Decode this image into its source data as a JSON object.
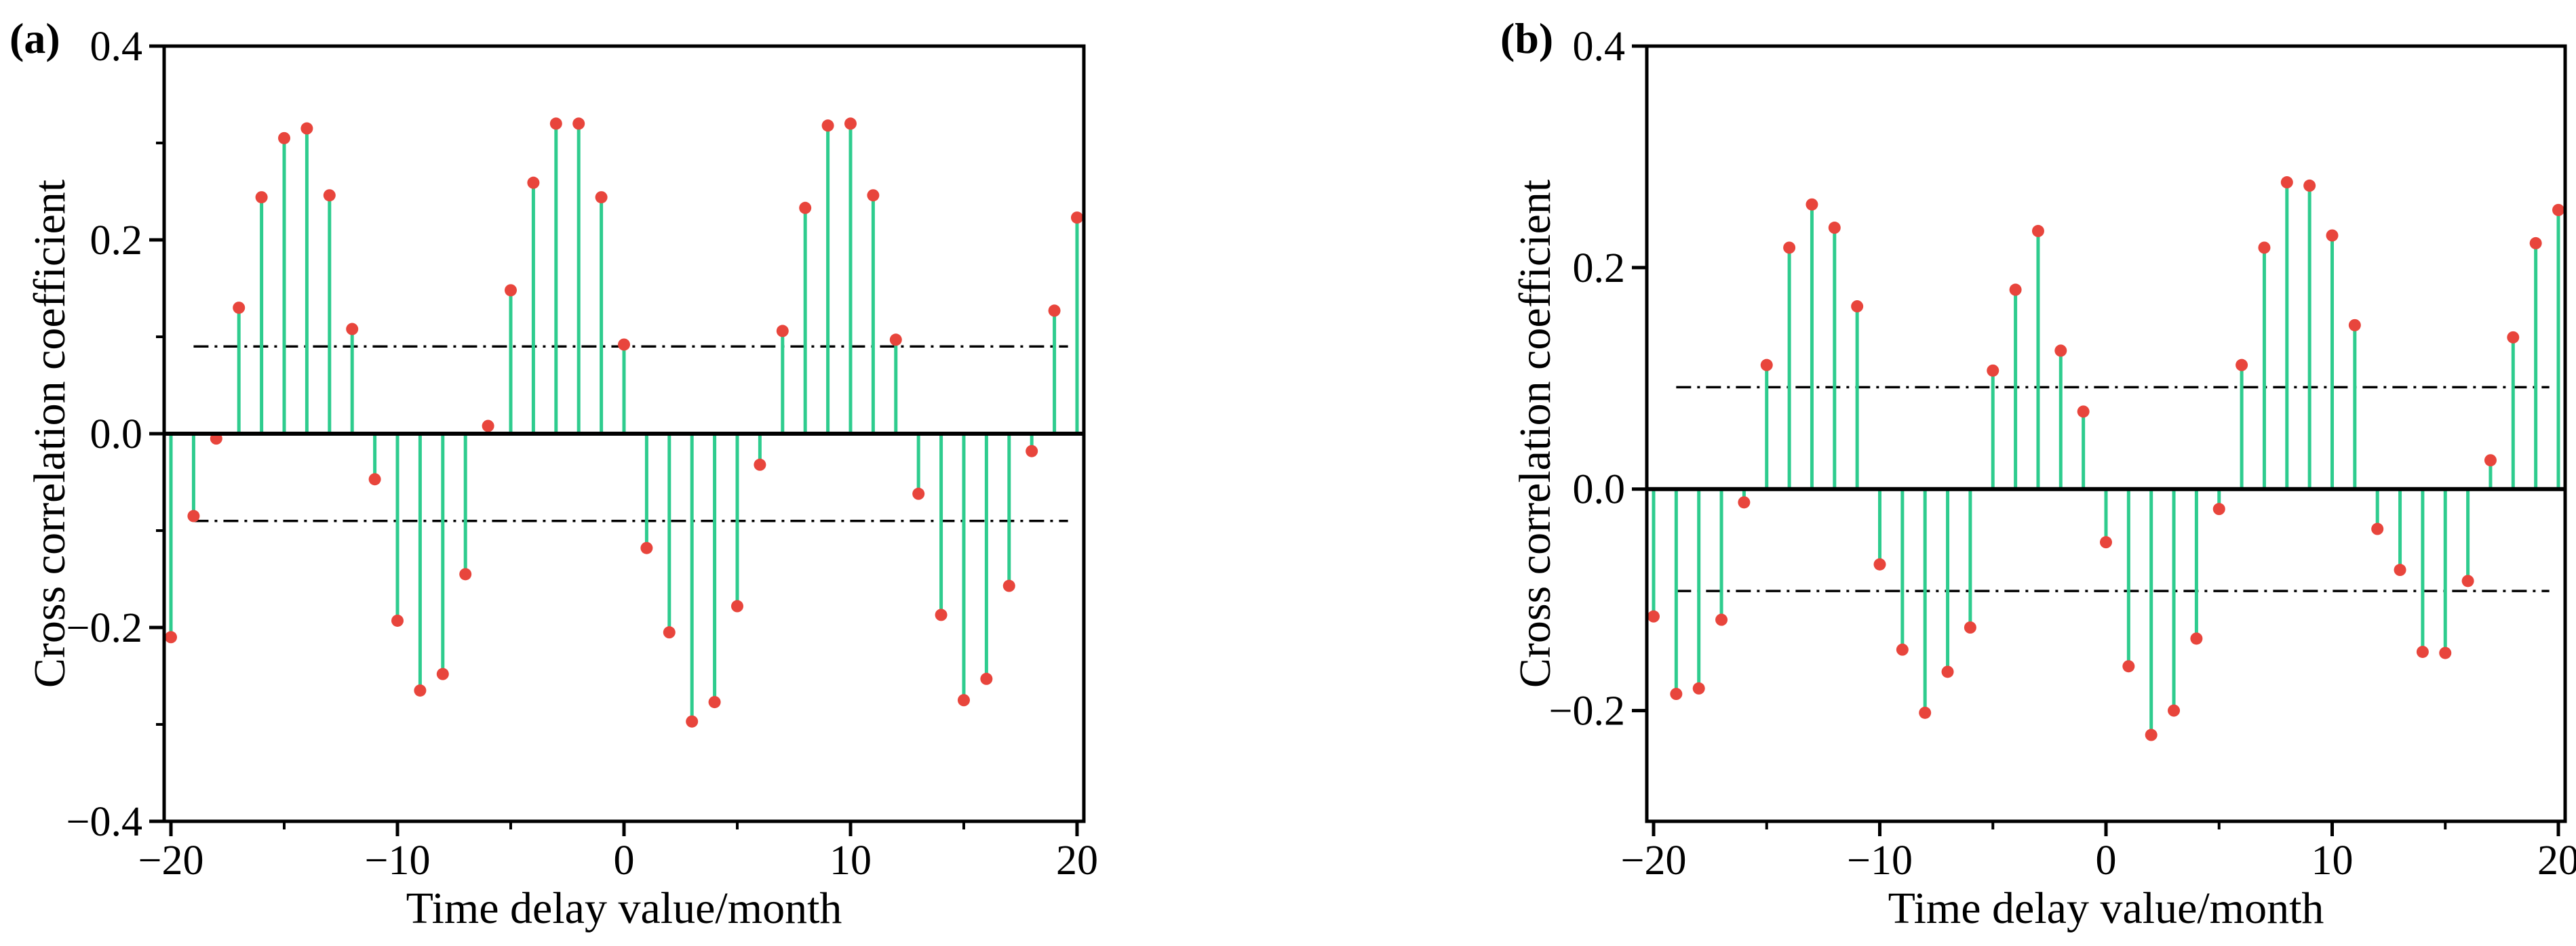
{
  "chart_data": [
    {
      "type": "stem",
      "panel_label": "(a)",
      "xlabel": "Time delay value/month",
      "ylabel": "Cross correlation coefficient",
      "xlim": [
        -20.3,
        20.3
      ],
      "ylim": [
        -0.4,
        0.4
      ],
      "xticks": [
        {
          "value": -20,
          "label": "−20"
        },
        {
          "value": -10,
          "label": "−10"
        },
        {
          "value": 0,
          "label": "0"
        },
        {
          "value": 10,
          "label": "10"
        },
        {
          "value": 20,
          "label": "20"
        }
      ],
      "yticks": [
        {
          "value": 0.4,
          "label": "0.4"
        },
        {
          "value": 0.2,
          "label": "0.2"
        },
        {
          "value": 0.0,
          "label": "0.0"
        },
        {
          "value": -0.2,
          "label": "−0.2"
        },
        {
          "value": -0.4,
          "label": "−0.4"
        }
      ],
      "confidence_bound": 0.09,
      "stem_color": "#2ecc8e",
      "marker_color": "#e8453c",
      "x": [
        -20,
        -19,
        -18,
        -17,
        -16,
        -15,
        -14,
        -13,
        -12,
        -11,
        -10,
        -9,
        -8,
        -7,
        -6,
        -5,
        -4,
        -3,
        -2,
        -1,
        0,
        1,
        2,
        3,
        4,
        5,
        6,
        7,
        8,
        9,
        10,
        11,
        12,
        13,
        14,
        15,
        16,
        17,
        18,
        19,
        20
      ],
      "values": [
        -0.21,
        -0.085,
        -0.005,
        0.13,
        0.244,
        0.305,
        0.315,
        0.246,
        0.108,
        -0.047,
        -0.193,
        -0.265,
        -0.248,
        -0.145,
        0.008,
        0.148,
        0.259,
        0.32,
        0.32,
        0.244,
        0.092,
        -0.118,
        -0.205,
        -0.297,
        -0.277,
        -0.178,
        -0.032,
        0.106,
        0.233,
        0.318,
        0.32,
        0.246,
        0.097,
        -0.062,
        -0.187,
        -0.275,
        -0.253,
        -0.157,
        -0.018,
        0.127,
        0.223
      ]
    },
    {
      "type": "stem",
      "panel_label": "(b)",
      "xlabel": "Time delay value/month",
      "ylabel": "Cross correlation coefficient",
      "xlim": [
        -20.3,
        20.3
      ],
      "ylim": [
        -0.3,
        0.4
      ],
      "xticks": [
        {
          "value": -20,
          "label": "−20"
        },
        {
          "value": -10,
          "label": "−10"
        },
        {
          "value": 0,
          "label": "0"
        },
        {
          "value": 10,
          "label": "10"
        },
        {
          "value": 20,
          "label": "20"
        }
      ],
      "yticks": [
        {
          "value": 0.4,
          "label": "0.4"
        },
        {
          "value": 0.2,
          "label": "0.2"
        },
        {
          "value": 0.0,
          "label": "0.0"
        },
        {
          "value": -0.2,
          "label": "−0.2"
        }
      ],
      "confidence_bound": 0.092,
      "stem_color": "#2ecc8e",
      "marker_color": "#e8453c",
      "x": [
        -20,
        -19,
        -18,
        -17,
        -16,
        -15,
        -14,
        -13,
        -12,
        -11,
        -10,
        -9,
        -8,
        -7,
        -6,
        -5,
        -4,
        -3,
        -2,
        -1,
        0,
        1,
        2,
        3,
        4,
        5,
        6,
        7,
        8,
        9,
        10,
        11,
        12,
        13,
        14,
        15,
        16,
        17,
        18,
        19,
        20
      ],
      "values": [
        -0.115,
        -0.185,
        -0.18,
        -0.118,
        -0.012,
        0.112,
        0.218,
        0.257,
        0.236,
        0.165,
        -0.068,
        -0.145,
        -0.202,
        -0.165,
        -0.125,
        0.107,
        0.18,
        0.233,
        0.125,
        0.07,
        -0.048,
        -0.16,
        -0.222,
        -0.2,
        -0.135,
        -0.018,
        0.112,
        0.218,
        0.277,
        0.274,
        0.229,
        0.148,
        -0.036,
        -0.073,
        -0.147,
        -0.148,
        -0.083,
        0.026,
        0.137,
        0.222,
        0.252
      ]
    }
  ]
}
